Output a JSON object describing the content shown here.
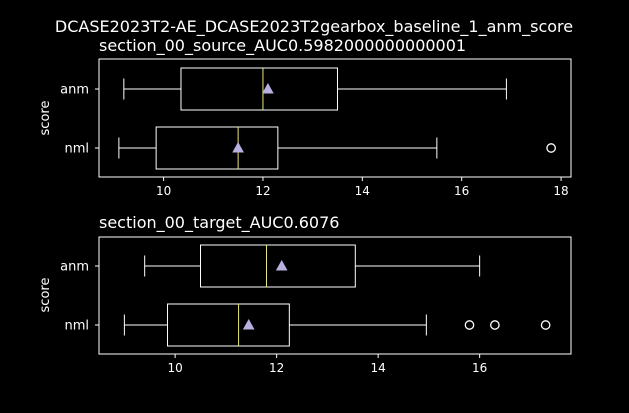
{
  "figure": {
    "suptitle": "DCASE2023T2-AE_DCASE2023T2gearbox_baseline_1_anm_score",
    "colors": {
      "background": "#000000",
      "foreground": "#ffffff",
      "median": "#e8e87a",
      "mean": "#b9b0e0"
    }
  },
  "chart_data": [
    {
      "type": "boxplot",
      "title": "section_00_source_AUC0.5982000000000001",
      "ylabel": "score",
      "xlim": [
        8.7,
        18.2
      ],
      "xticks": [
        10,
        12,
        14,
        16,
        18
      ],
      "xtick_labels": [
        "10",
        "12",
        "14",
        "16",
        "18"
      ],
      "categories": [
        "anm",
        "nml"
      ],
      "boxes": [
        {
          "name": "anm",
          "whisker_low": 9.2,
          "q1": 10.35,
          "median": 12.0,
          "q3": 13.5,
          "whisker_high": 16.9,
          "mean": 12.1,
          "outliers": []
        },
        {
          "name": "nml",
          "whisker_low": 9.1,
          "q1": 9.85,
          "median": 11.5,
          "q3": 12.3,
          "whisker_high": 15.5,
          "mean": 11.5,
          "outliers": [
            17.8
          ]
        }
      ]
    },
    {
      "type": "boxplot",
      "title": "section_00_target_AUC0.6076",
      "ylabel": "score",
      "xlim": [
        8.5,
        17.8
      ],
      "xticks": [
        10,
        12,
        14,
        16
      ],
      "xtick_labels": [
        "10",
        "12",
        "14",
        "16"
      ],
      "categories": [
        "anm",
        "nml"
      ],
      "boxes": [
        {
          "name": "anm",
          "whisker_low": 9.4,
          "q1": 10.5,
          "median": 11.8,
          "q3": 13.55,
          "whisker_high": 16.0,
          "mean": 12.1,
          "outliers": []
        },
        {
          "name": "nml",
          "whisker_low": 9.0,
          "q1": 9.85,
          "median": 11.25,
          "q3": 12.25,
          "whisker_high": 14.95,
          "mean": 11.45,
          "outliers": [
            15.8,
            16.3,
            17.3
          ]
        }
      ]
    }
  ]
}
